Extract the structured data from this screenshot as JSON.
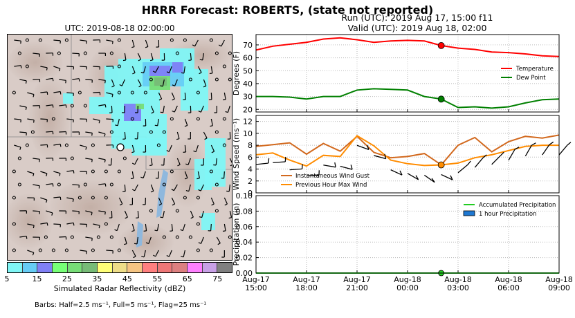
{
  "suptitle": "HRRR Forecast: ROBERTS, (state not reported)",
  "run_line": "Run (UTC): 2019 Aug 17, 15:00 f11",
  "valid_line": "Valid (UTC): 2019 Aug 18, 02:00",
  "map": {
    "title": "UTC: 2019-08-18 02:00:00",
    "colorbar_label": "Simulated Radar Reflectivity (dBZ)",
    "colorbar_ticks": [
      "5",
      "15",
      "25",
      "35",
      "45",
      "55",
      "65",
      "75"
    ],
    "colorbar_colors": [
      "#7ff5f5",
      "#66ccf5",
      "#8080f5",
      "#77ff77",
      "#77dd77",
      "#77bb77",
      "#ffff77",
      "#eedd88",
      "#f5c482",
      "#ff7f7f",
      "#ee7777",
      "#dd8080",
      "#ff80ff",
      "#c8a0e6",
      "#808080"
    ],
    "barbs_note": "Barbs: Half=2.5 ms⁻¹, Full=5 ms⁻¹, Flag=25 ms⁻¹"
  },
  "chart_data": [
    {
      "type": "line",
      "ylabel": "Degrees (F)",
      "ylim": [
        18,
        78
      ],
      "yticks": [
        "20",
        "30",
        "40",
        "50",
        "60",
        "70"
      ],
      "x": [
        "Aug-17 15:00",
        "Aug-17 16:00",
        "Aug-17 17:00",
        "Aug-17 18:00",
        "Aug-17 19:00",
        "Aug-17 20:00",
        "Aug-17 21:00",
        "Aug-17 22:00",
        "Aug-17 23:00",
        "Aug-18 00:00",
        "Aug-18 01:00",
        "Aug-18 02:00",
        "Aug-18 03:00",
        "Aug-18 04:00",
        "Aug-18 05:00",
        "Aug-18 06:00",
        "Aug-18 07:00",
        "Aug-18 08:00",
        "Aug-18 09:00"
      ],
      "series": [
        {
          "name": "Temperature",
          "color": "#ff0000",
          "values": [
            66,
            69,
            70.5,
            72,
            74.5,
            75.5,
            74,
            72,
            73,
            73.5,
            73,
            69.5,
            67.5,
            66.5,
            64.5,
            64,
            63,
            61.5,
            61
          ]
        },
        {
          "name": "Dew Point",
          "color": "#008000",
          "values": [
            30,
            30,
            29.5,
            28,
            30,
            30,
            35,
            36,
            35.5,
            35,
            30,
            28,
            21.5,
            22,
            21,
            22,
            25,
            27.5,
            28
          ]
        }
      ],
      "highlight_index": 11,
      "legend": "center-right"
    },
    {
      "type": "line",
      "ylabel": "Wind Speed (ms⁻¹)",
      "ylim": [
        0,
        13
      ],
      "yticks": [
        "0",
        "2",
        "4",
        "6",
        "8",
        "10",
        "12"
      ],
      "series": [
        {
          "name": "Instantaneous Wind Gust",
          "color": "#d2691e",
          "values": [
            7.8,
            8.1,
            8.4,
            6.5,
            8.3,
            7.0,
            9.5,
            6.8,
            5.9,
            6.1,
            6.6,
            4.7,
            8.0,
            9.3,
            6.9,
            8.6,
            9.5,
            9.2,
            9.7
          ]
        },
        {
          "name": "Previous Hour Max Wind",
          "color": "#ff8c00",
          "values": [
            6.4,
            6.7,
            5.5,
            4.5,
            6.3,
            6.1,
            9.6,
            7.9,
            5.5,
            4.9,
            4.6,
            4.7,
            5.0,
            5.9,
            6.4,
            7.1,
            7.8,
            8.0,
            8.0
          ]
        }
      ],
      "highlight_index": 11,
      "legend": "lower-left"
    },
    {
      "type": "line",
      "ylabel": "Precipitation (in)",
      "ylim": [
        0,
        0.1
      ],
      "yticks": [
        "0.00",
        "0.02",
        "0.04",
        "0.06",
        "0.08",
        "0.10"
      ],
      "xtick_dates": [
        "Aug-17",
        "Aug-17",
        "Aug-17",
        "Aug-18",
        "Aug-18",
        "Aug-18",
        "Aug-18"
      ],
      "xtick_times": [
        "15:00",
        "18:00",
        "21:00",
        "00:00",
        "03:00",
        "06:00",
        "09:00"
      ],
      "series": [
        {
          "name": "Accumulated Precipitation",
          "color": "#22cc22",
          "values": [
            0,
            0,
            0,
            0,
            0,
            0,
            0,
            0,
            0,
            0,
            0,
            0,
            0,
            0,
            0,
            0,
            0,
            0,
            0
          ]
        },
        {
          "name": "1 hour Precipitation",
          "color": "#1e78d2",
          "values": [
            0,
            0,
            0,
            0,
            0,
            0,
            0,
            0,
            0,
            0,
            0,
            0,
            0,
            0,
            0,
            0,
            0,
            0,
            0
          ]
        }
      ],
      "highlight_index": 11,
      "legend": "top-right"
    }
  ]
}
